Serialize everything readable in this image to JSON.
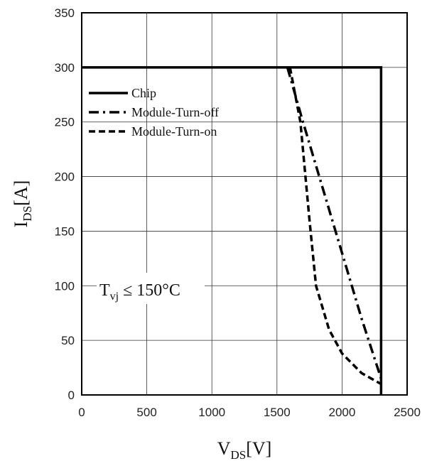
{
  "chart_data": {
    "type": "line",
    "xlabel": {
      "main": "V",
      "sub": "DS",
      "unit": "[V]"
    },
    "ylabel": {
      "main": "I",
      "sub": "DS",
      "unit": "[A]"
    },
    "xlim": [
      0,
      2500
    ],
    "ylim": [
      0,
      350
    ],
    "xticks": [
      0,
      500,
      1000,
      1500,
      2000,
      2500
    ],
    "yticks": [
      0,
      50,
      100,
      150,
      200,
      250,
      300,
      350
    ],
    "grid": true,
    "legend": "top-left",
    "annotation": {
      "main": "T",
      "sub": "vj",
      "rest": " ≤ 150°C"
    },
    "series": [
      {
        "name": "Chip",
        "style": "solid",
        "points": [
          [
            0,
            300
          ],
          [
            2300,
            300
          ],
          [
            2300,
            0
          ]
        ]
      },
      {
        "name": "Module-Turn-off",
        "style": "dashdot",
        "points": [
          [
            1580,
            300
          ],
          [
            1700,
            250
          ],
          [
            1850,
            190
          ],
          [
            2000,
            130
          ],
          [
            2150,
            70
          ],
          [
            2300,
            15
          ]
        ]
      },
      {
        "name": "Module-Turn-on",
        "style": "dashed",
        "points": [
          [
            1600,
            300
          ],
          [
            1680,
            250
          ],
          [
            1750,
            160
          ],
          [
            1800,
            100
          ],
          [
            1900,
            60
          ],
          [
            2000,
            38
          ],
          [
            2150,
            20
          ],
          [
            2300,
            10
          ]
        ]
      }
    ]
  }
}
